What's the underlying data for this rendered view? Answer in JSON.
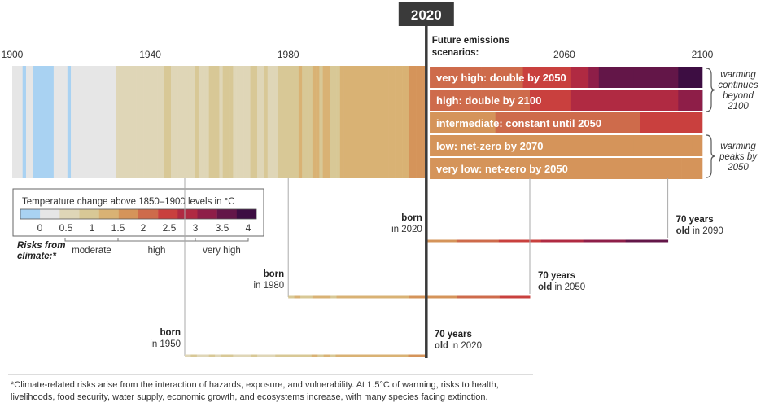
{
  "chart_data": {
    "type": "heatmap",
    "title": "",
    "x_axis": {
      "min": 1900,
      "max": 2100,
      "ticks": [
        "1900",
        "1940",
        "1980",
        "2060",
        "2100"
      ]
    },
    "current_year": {
      "label": "2020",
      "value": 2020
    },
    "scenario_heading": "Future emissions scenarios:",
    "colors_legend": {
      "title": "Temperature change above 1850–1900 levels in °C",
      "tick_labels": [
        "0",
        "0.5",
        "1",
        "1.5",
        "2",
        "2.5",
        "3",
        "3.5",
        "4"
      ],
      "colors": [
        "#a9d2f2",
        "#e6e6e6",
        "#dfd6b7",
        "#d8c896",
        "#d9b274",
        "#d5945a",
        "#ce6b4b",
        "#c9403e",
        "#b02a42",
        "#8e1e48",
        "#631648",
        "#3d0d42"
      ]
    },
    "risk_scale": {
      "label": "Risks from climate:*",
      "bands": [
        "moderate",
        "high",
        "very high"
      ]
    },
    "historical_temperatures": [
      {
        "year": 1900,
        "value": 0.2
      },
      {
        "year": 1902,
        "value": 0.25
      },
      {
        "year": 1903,
        "value": -0.2
      },
      {
        "year": 1904,
        "value": 0.25
      },
      {
        "year": 1905,
        "value": 0.2
      },
      {
        "year": 1906,
        "value": -0.2
      },
      {
        "year": 1912,
        "value": 0.2
      },
      {
        "year": 1916,
        "value": -0.2
      },
      {
        "year": 1917,
        "value": 0.2
      },
      {
        "year": 1930,
        "value": 0.55
      },
      {
        "year": 1931,
        "value": 0.35
      },
      {
        "year": 1932,
        "value": 0.6
      },
      {
        "year": 1933,
        "value": 0.4
      },
      {
        "year": 1935,
        "value": 0.6
      },
      {
        "year": 1936,
        "value": 0.4
      },
      {
        "year": 1937,
        "value": 0.7
      },
      {
        "year": 1938,
        "value": 0.45
      },
      {
        "year": 1939,
        "value": 0.65
      },
      {
        "year": 1942,
        "value": 0.7
      },
      {
        "year": 1944,
        "value": 0.8
      },
      {
        "year": 1945,
        "value": 0.75
      },
      {
        "year": 1946,
        "value": 0.4
      },
      {
        "year": 1947,
        "value": 0.65
      },
      {
        "year": 1948,
        "value": 0.45
      },
      {
        "year": 1949,
        "value": 0.6
      },
      {
        "year": 1950,
        "value": 0.4
      },
      {
        "year": 1951,
        "value": 0.65
      },
      {
        "year": 1952,
        "value": 0.7
      },
      {
        "year": 1953,
        "value": 0.8
      },
      {
        "year": 1954,
        "value": 0.45
      },
      {
        "year": 1955,
        "value": 0.4
      },
      {
        "year": 1956,
        "value": 0.35
      },
      {
        "year": 1957,
        "value": 0.75
      },
      {
        "year": 1958,
        "value": 0.85
      },
      {
        "year": 1959,
        "value": 0.75
      },
      {
        "year": 1960,
        "value": 0.7
      },
      {
        "year": 1961,
        "value": 0.8
      },
      {
        "year": 1962,
        "value": 0.75
      },
      {
        "year": 1963,
        "value": 0.8
      },
      {
        "year": 1964,
        "value": 0.45
      },
      {
        "year": 1965,
        "value": 0.5
      },
      {
        "year": 1966,
        "value": 0.65
      },
      {
        "year": 1967,
        "value": 0.7
      },
      {
        "year": 1968,
        "value": 0.65
      },
      {
        "year": 1969,
        "value": 0.8
      },
      {
        "year": 1970,
        "value": 0.75
      },
      {
        "year": 1971,
        "value": 0.6
      },
      {
        "year": 1972,
        "value": 0.7
      },
      {
        "year": 1973,
        "value": 0.9
      },
      {
        "year": 1974,
        "value": 0.6
      },
      {
        "year": 1975,
        "value": 0.65
      },
      {
        "year": 1976,
        "value": 0.55
      },
      {
        "year": 1977,
        "value": 0.9
      },
      {
        "year": 1978,
        "value": 0.8
      },
      {
        "year": 1979,
        "value": 0.95
      },
      {
        "year": 1980,
        "value": 1.0
      },
      {
        "year": 1981,
        "value": 1.05
      },
      {
        "year": 1982,
        "value": 0.9
      },
      {
        "year": 1983,
        "value": 1.1
      },
      {
        "year": 1984,
        "value": 0.9
      },
      {
        "year": 1985,
        "value": 0.85
      },
      {
        "year": 1986,
        "value": 0.95
      },
      {
        "year": 1987,
        "value": 1.1
      },
      {
        "year": 1988,
        "value": 1.15
      },
      {
        "year": 1989,
        "value": 1.0
      },
      {
        "year": 1990,
        "value": 1.2
      },
      {
        "year": 1991,
        "value": 1.15
      },
      {
        "year": 1992,
        "value": 0.95
      },
      {
        "year": 1993,
        "value": 1.0
      },
      {
        "year": 1994,
        "value": 1.05
      },
      {
        "year": 1995,
        "value": 1.2
      },
      {
        "year": 1996,
        "value": 1.1
      },
      {
        "year": 1997,
        "value": 1.25
      },
      {
        "year": 1998,
        "value": 1.4
      },
      {
        "year": 1999,
        "value": 1.2
      },
      {
        "year": 2000,
        "value": 1.2
      },
      {
        "year": 2001,
        "value": 1.3
      },
      {
        "year": 2002,
        "value": 1.35
      },
      {
        "year": 2003,
        "value": 1.35
      },
      {
        "year": 2004,
        "value": 1.3
      },
      {
        "year": 2005,
        "value": 1.4
      },
      {
        "year": 2006,
        "value": 1.35
      },
      {
        "year": 2007,
        "value": 1.35
      },
      {
        "year": 2008,
        "value": 1.25
      },
      {
        "year": 2009,
        "value": 1.35
      },
      {
        "year": 2010,
        "value": 1.45
      },
      {
        "year": 2011,
        "value": 1.3
      },
      {
        "year": 2012,
        "value": 1.35
      },
      {
        "year": 2013,
        "value": 1.4
      },
      {
        "year": 2014,
        "value": 1.45
      },
      {
        "year": 2015,
        "value": 1.55
      },
      {
        "year": 2016,
        "value": 1.65
      },
      {
        "year": 2017,
        "value": 1.6
      },
      {
        "year": 2018,
        "value": 1.55
      },
      {
        "year": 2019,
        "value": 1.6
      }
    ],
    "scenarios": [
      {
        "name": "very high: double by 2050",
        "segments": [
          [
            2021,
            2.0
          ],
          [
            2036,
            2.2
          ],
          [
            2048,
            2.5
          ],
          [
            2062,
            2.9
          ],
          [
            2067,
            3.2
          ],
          [
            2070,
            3.5
          ],
          [
            2080,
            3.8
          ],
          [
            2093,
            4.0
          ]
        ]
      },
      {
        "name": "high: double by 2100",
        "segments": [
          [
            2021,
            2.0
          ],
          [
            2036,
            2.2
          ],
          [
            2050,
            2.4
          ],
          [
            2062,
            2.7
          ],
          [
            2080,
            3.0
          ],
          [
            2093,
            3.3
          ],
          [
            2100,
            3.6
          ]
        ]
      },
      {
        "name": "intermediate: constant until 2050",
        "segments": [
          [
            2021,
            1.9
          ],
          [
            2040,
            2.1
          ],
          [
            2056,
            2.3
          ],
          [
            2082,
            2.6
          ]
        ]
      },
      {
        "name": "low: net-zero by 2070",
        "segments": [
          [
            2021,
            1.6
          ],
          [
            2037,
            1.8
          ],
          [
            2052,
            1.9
          ],
          [
            2080,
            1.8
          ],
          [
            2085,
            1.9
          ],
          [
            2097,
            1.8
          ]
        ]
      },
      {
        "name": "very low: net-zero by 2050",
        "segments": [
          [
            2021,
            1.5
          ],
          [
            2028,
            1.6
          ],
          [
            2046,
            1.65
          ],
          [
            2094,
            1.55
          ]
        ]
      }
    ],
    "scenario_side_notes": [
      {
        "lines": [
          "warming",
          "continues",
          "beyond",
          "2100"
        ]
      },
      {
        "lines": [
          "warming",
          "peaks by",
          "2050"
        ]
      }
    ],
    "lifespans": [
      {
        "born_label": [
          "born",
          "in 2020"
        ],
        "start": 2020,
        "end_label": [
          "70 years",
          "old in 2090"
        ],
        "end": 2090
      },
      {
        "born_label": [
          "born",
          "in 1980"
        ],
        "start": 1980,
        "end_label": [
          "70 years",
          "old in 2050"
        ],
        "end": 2050
      },
      {
        "born_label": [
          "born",
          "in 1950"
        ],
        "start": 1950,
        "end_label": [
          "70 years",
          "old in 2020"
        ],
        "end": 2020
      }
    ],
    "footnote": [
      "*Climate-related risks arise from the interaction of hazards, exposure, and vulnerability. At 1.5°C of warming, risks to health,",
      "livelihoods, food security, water supply, economic growth, and ecosystems increase, with many species facing extinction."
    ]
  }
}
